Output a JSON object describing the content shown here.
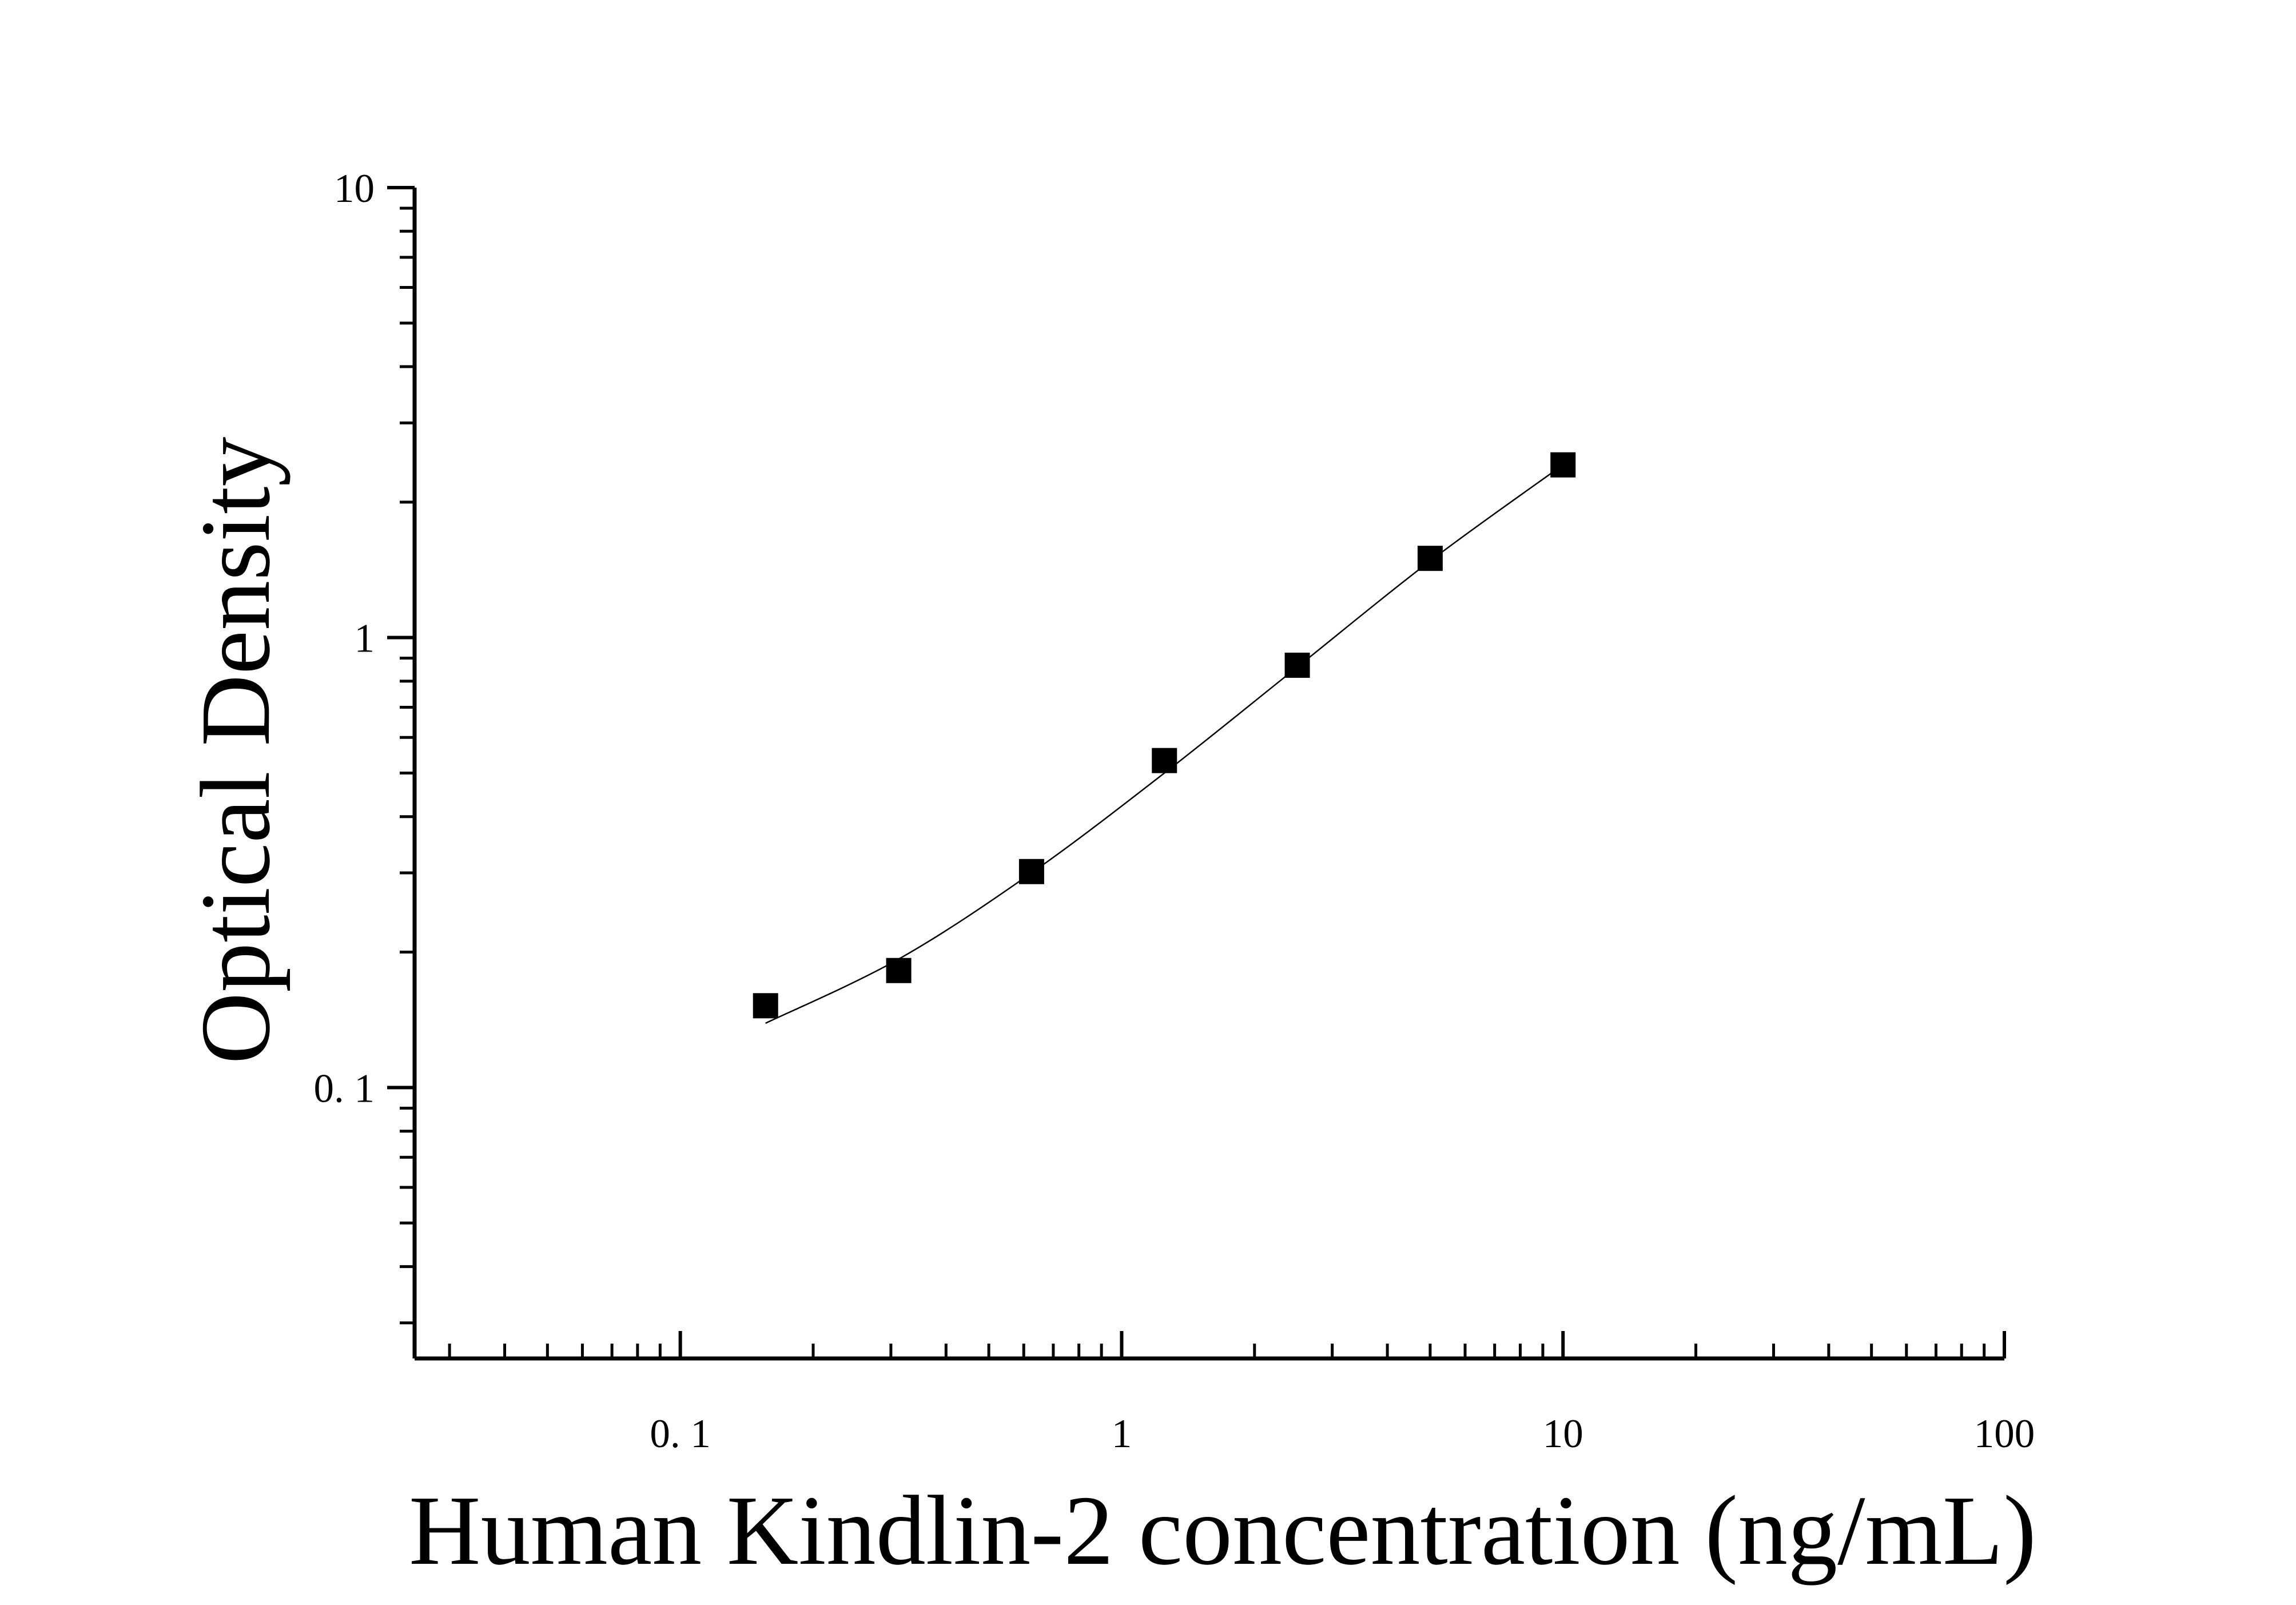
{
  "chart_data": {
    "type": "scatter",
    "xlabel": "Human Kindlin-2 concentration (ng/mL)",
    "ylabel": "Optical Density",
    "xscale": "log",
    "yscale": "log",
    "xlim": [
      0.025,
      100
    ],
    "ylim": [
      0.025,
      10
    ],
    "x_tick_labels": [
      {
        "value": 0.1,
        "label": "0. 1"
      },
      {
        "value": 1,
        "label": "1"
      },
      {
        "value": 10,
        "label": "10"
      },
      {
        "value": 100,
        "label": "100"
      }
    ],
    "y_tick_labels": [
      {
        "value": 0.1,
        "label": "0. 1"
      },
      {
        "value": 1,
        "label": "1"
      },
      {
        "value": 10,
        "label": "10"
      }
    ],
    "grid": false,
    "marker": "square",
    "colors": {
      "marker": "#000000",
      "curve": "#000000",
      "axes": "#000000"
    },
    "points": [
      {
        "x": 0.156,
        "y": 0.152
      },
      {
        "x": 0.3125,
        "y": 0.182
      },
      {
        "x": 0.625,
        "y": 0.302
      },
      {
        "x": 1.25,
        "y": 0.533
      },
      {
        "x": 2.5,
        "y": 0.868
      },
      {
        "x": 5,
        "y": 1.5
      },
      {
        "x": 10,
        "y": 2.42
      }
    ],
    "fit_curve": [
      {
        "x": 0.156,
        "y": 0.139
      },
      {
        "x": 0.3125,
        "y": 0.193
      },
      {
        "x": 0.625,
        "y": 0.3
      },
      {
        "x": 1.25,
        "y": 0.5
      },
      {
        "x": 2.5,
        "y": 0.86
      },
      {
        "x": 5,
        "y": 1.48
      },
      {
        "x": 10,
        "y": 2.42
      }
    ]
  }
}
